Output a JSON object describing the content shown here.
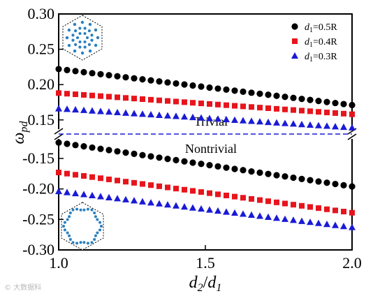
{
  "chart_data": {
    "type": "scatter",
    "xlabel": {
      "main": "d",
      "sub1": "2",
      "slash": "/",
      "main2": "d",
      "sub2": "1"
    },
    "ylabel": {
      "main": "ω",
      "sub": "pd"
    },
    "xlim": [
      1.0,
      2.0
    ],
    "x_ticks": [
      "1.0",
      "1.5",
      "2.0"
    ],
    "upper_panel": {
      "ylim": [
        0.13,
        0.3
      ],
      "y_ticks": [
        "0.15",
        "0.20",
        "0.25",
        "0.30"
      ]
    },
    "lower_panel": {
      "ylim": [
        -0.3,
        -0.11
      ],
      "y_ticks": [
        "-0.15",
        "-0.20",
        "-0.25",
        "-0.30"
      ]
    },
    "annotations": {
      "trivial": "Trivial",
      "nontrivial": "Nontrivial"
    },
    "series": [
      {
        "name": "d1=0.5R",
        "label_main": "d",
        "label_sub": "1",
        "label_rest": "=0.5R",
        "marker": "circle",
        "color": "#000000",
        "upper": {
          "x_start": 1.0,
          "x_end": 2.0,
          "y_start": 0.222,
          "y_end": 0.171,
          "count": 36
        },
        "lower": {
          "x_start": 1.0,
          "x_end": 2.0,
          "y_start": -0.124,
          "y_end": -0.196,
          "count": 36
        }
      },
      {
        "name": "d1=0.4R",
        "label_main": "d",
        "label_sub": "1",
        "label_rest": "=0.4R",
        "marker": "square",
        "color": "#e8141c",
        "upper": {
          "x_start": 1.0,
          "x_end": 2.0,
          "y_start": 0.188,
          "y_end": 0.158,
          "count": 36
        },
        "lower": {
          "x_start": 1.0,
          "x_end": 2.0,
          "y_start": -0.173,
          "y_end": -0.239,
          "count": 36
        }
      },
      {
        "name": "d1=0.3R",
        "label_main": "d",
        "label_sub": "1",
        "label_rest": "=0.3R",
        "marker": "triangle",
        "color": "#1a1ad6",
        "upper": {
          "x_start": 1.0,
          "x_end": 2.0,
          "y_start": 0.166,
          "y_end": 0.139,
          "count": 36
        },
        "lower": {
          "x_start": 1.0,
          "x_end": 2.0,
          "y_start": -0.204,
          "y_end": -0.263,
          "count": 36
        }
      }
    ],
    "colors": {
      "axis": "#000000",
      "divider": "#1a1ad6",
      "inset_dots": "#2a7fc0"
    },
    "legend_position": "top-right",
    "watermark": "© 大数据科"
  }
}
